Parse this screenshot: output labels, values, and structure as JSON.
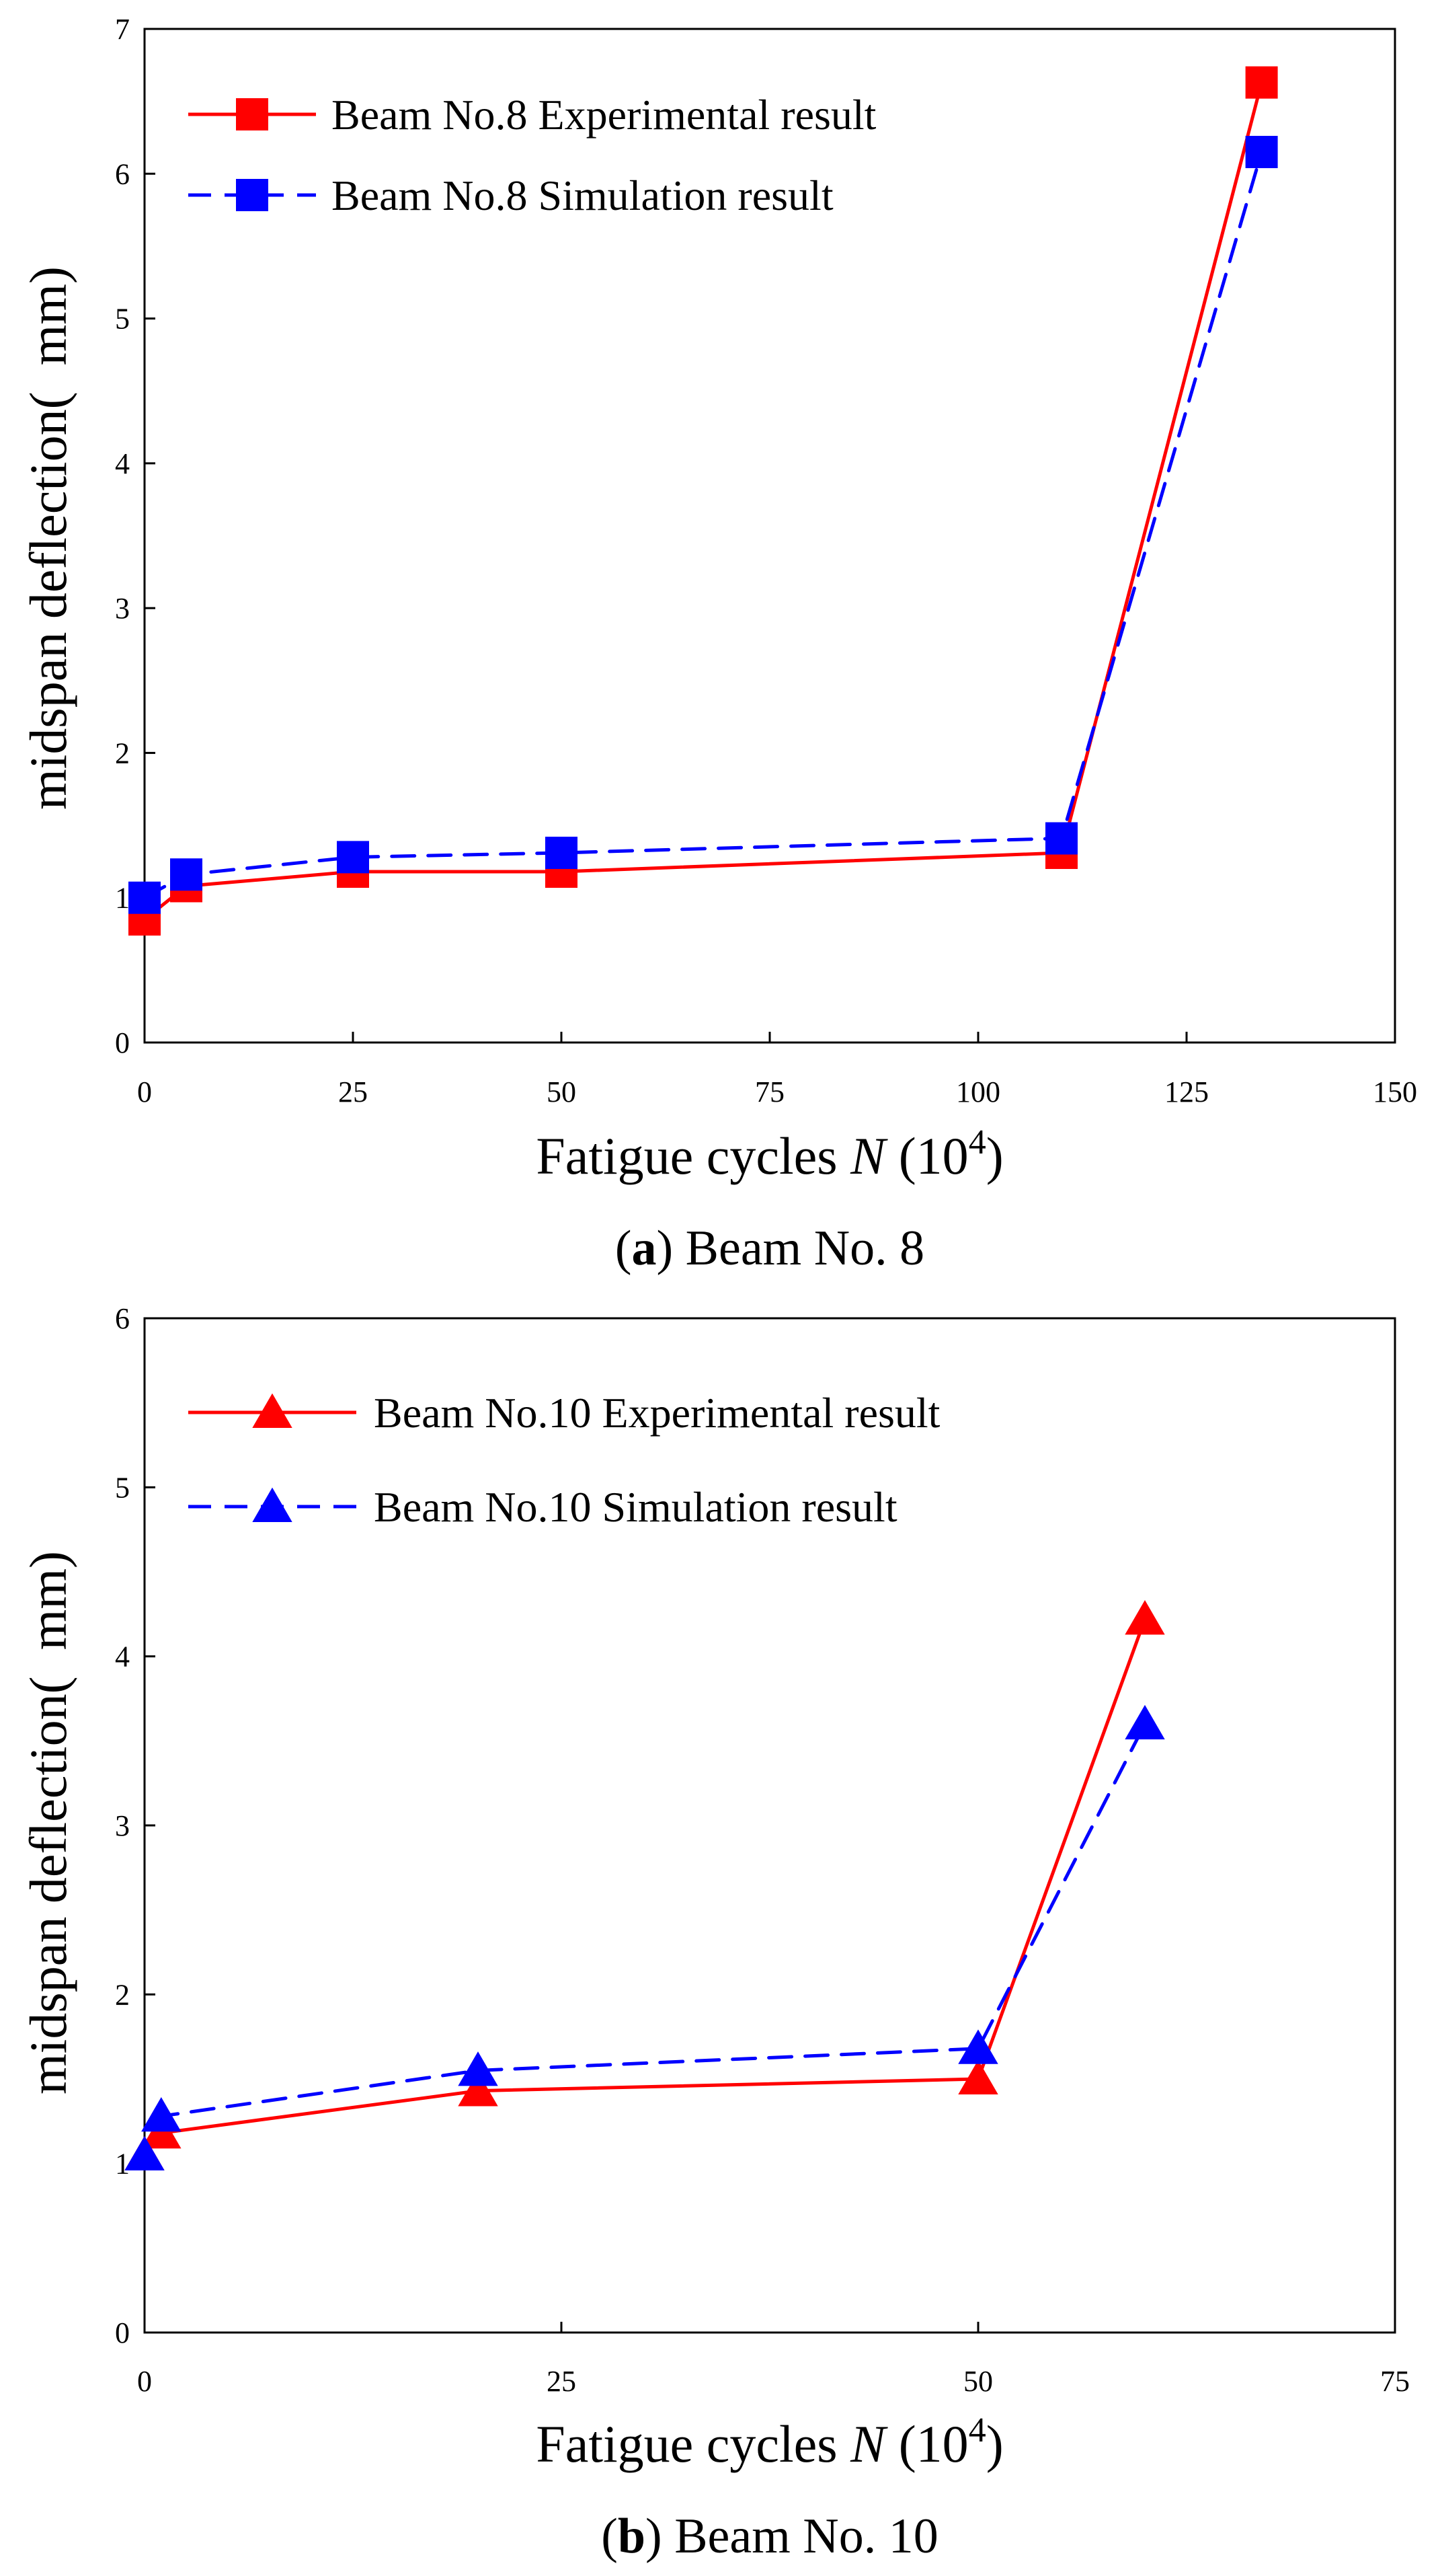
{
  "chart_data": [
    {
      "type": "line",
      "caption_letter": "a",
      "caption_text": "Beam No. 8",
      "xlabel_prefix": "Fatigue cycles ",
      "xlabel_var": "N",
      "xlabel_base": " (10",
      "xlabel_exp": "4",
      "xlabel_suffix": ")",
      "ylabel": "midspan deflection(  mm)",
      "xlim": [
        0,
        150
      ],
      "ylim": [
        0,
        7
      ],
      "xticks": [
        0,
        25,
        50,
        75,
        100,
        125,
        150
      ],
      "yticks": [
        0,
        1,
        2,
        3,
        4,
        5,
        6,
        7
      ],
      "marker": "square",
      "series": [
        {
          "name": "Beam No.8 Experimental result",
          "color": "#ff0000",
          "dash": "solid",
          "x": [
            0,
            5,
            25,
            50,
            110,
            134
          ],
          "y": [
            0.85,
            1.08,
            1.18,
            1.18,
            1.31,
            6.63
          ]
        },
        {
          "name": "Beam No.8 Simulation result",
          "color": "#0000ff",
          "dash": "dashed",
          "x": [
            0,
            5,
            25,
            50,
            110,
            134
          ],
          "y": [
            1.0,
            1.16,
            1.28,
            1.31,
            1.41,
            6.15
          ]
        }
      ]
    },
    {
      "type": "line",
      "caption_letter": "b",
      "caption_text": "Beam No. 10",
      "xlabel_prefix": "Fatigue cycles ",
      "xlabel_var": "N",
      "xlabel_base": " (10",
      "xlabel_exp": "4",
      "xlabel_suffix": ")",
      "ylabel": "midspan deflection(  mm)",
      "xlim": [
        0,
        75
      ],
      "ylim": [
        0,
        6
      ],
      "xticks": [
        0,
        25,
        50,
        75
      ],
      "yticks": [
        0,
        1,
        2,
        3,
        4,
        5,
        6
      ],
      "marker": "triangle",
      "series": [
        {
          "name": "Beam No.10 Experimental result",
          "color": "#ff0000",
          "dash": "solid",
          "x": [
            0,
            1,
            20,
            50,
            60
          ],
          "y": [
            1.05,
            1.18,
            1.43,
            1.5,
            4.22
          ]
        },
        {
          "name": "Beam No.10 Simulation result",
          "color": "#0000ff",
          "dash": "dashed",
          "x": [
            0,
            1,
            20,
            50,
            60
          ],
          "y": [
            1.05,
            1.28,
            1.55,
            1.68,
            3.6
          ]
        }
      ]
    }
  ]
}
